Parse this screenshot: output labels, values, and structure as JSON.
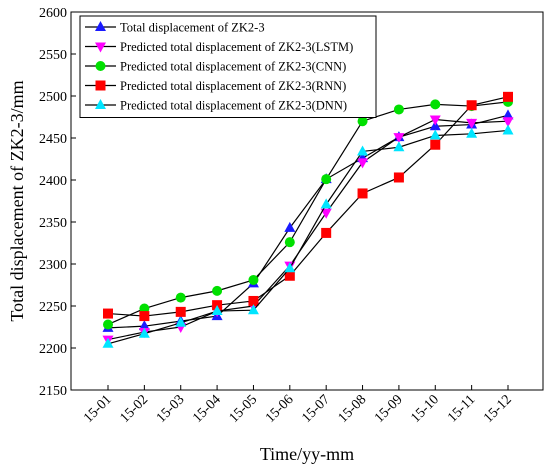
{
  "chart_data": {
    "type": "line",
    "title": "",
    "xlabel": "Time/yy-mm",
    "ylabel": "Total displacement of ZK2-3/mm",
    "categories": [
      "15-01",
      "15-02",
      "15-03",
      "15-04",
      "15-05",
      "15-06",
      "15-07",
      "15-08",
      "15-09",
      "15-10",
      "15-11",
      "15-12"
    ],
    "ylim": [
      2150,
      2600
    ],
    "yticks": [
      2150,
      2200,
      2250,
      2300,
      2350,
      2400,
      2450,
      2500,
      2550,
      2600
    ],
    "grid": false,
    "legend_position": "top-left",
    "series": [
      {
        "name": "Total displacement of ZK2-3",
        "marker": "triangle-up",
        "color": "#1a1aff",
        "values": [
          2224,
          2226,
          2232,
          2238,
          2277,
          2343,
          2401,
          2426,
          2451,
          2464,
          2466,
          2477
        ]
      },
      {
        "name": "Predicted total displacement of ZK2-3(LSTM)",
        "marker": "triangle-down",
        "color": "#ff00ff",
        "values": [
          2210,
          2219,
          2225,
          2244,
          2250,
          2298,
          2361,
          2421,
          2451,
          2472,
          2468,
          2470
        ]
      },
      {
        "name": "Predicted total displacement of ZK2-3(CNN)",
        "marker": "circle",
        "color": "#00e000",
        "values": [
          2228,
          2247,
          2260,
          2268,
          2281,
          2326,
          2401,
          2470,
          2484,
          2490,
          2488,
          2493
        ]
      },
      {
        "name": "Predicted total displacement of ZK2-3(RNN)",
        "marker": "square",
        "color": "#ff0000",
        "values": [
          2241,
          2238,
          2243,
          2251,
          2256,
          2286,
          2337,
          2384,
          2403,
          2442,
          2489,
          2499
        ]
      },
      {
        "name": "Predicted total displacement of ZK2-3(DNN)",
        "marker": "triangle-up",
        "color": "#00e5ff",
        "values": [
          2205,
          2217,
          2230,
          2244,
          2245,
          2295,
          2371,
          2434,
          2439,
          2453,
          2455,
          2459
        ]
      }
    ]
  }
}
